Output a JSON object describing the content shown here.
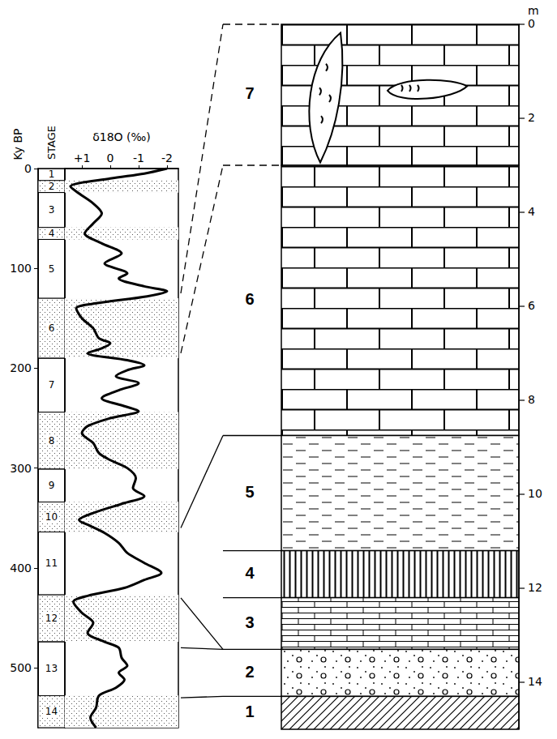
{
  "chart_data": {
    "type": "line",
    "xlabel": "δ18O (‰)",
    "ylabel": "Ky BP",
    "stage_label": "STAGE",
    "color": "#000000",
    "xlim": [
      1.6,
      -2.4
    ],
    "xticks": [
      {
        "value": 1,
        "label": "+1"
      },
      0,
      -1,
      -2
    ],
    "ylim": [
      0,
      560
    ],
    "yticks": [
      0,
      100,
      200,
      300,
      400,
      500
    ],
    "y": [
      0,
      5,
      10,
      18,
      25,
      35,
      45,
      55,
      65,
      75,
      85,
      95,
      105,
      110,
      118,
      123,
      128,
      135,
      140,
      150,
      160,
      170,
      175,
      180,
      185,
      192,
      197,
      202,
      208,
      215,
      222,
      230,
      238,
      243,
      250,
      258,
      265,
      275,
      285,
      292,
      300,
      310,
      320,
      328,
      335,
      345,
      352,
      358,
      365,
      375,
      385,
      395,
      405,
      412,
      420,
      428,
      434,
      445,
      455,
      465,
      474,
      480,
      490,
      498,
      505,
      512,
      520,
      528,
      540,
      550,
      560
    ],
    "x": [
      -2.0,
      -1.2,
      0.0,
      1.4,
      1.1,
      0.6,
      0.3,
      0.6,
      0.9,
      0.3,
      -0.4,
      0.2,
      -0.6,
      -0.3,
      -1.2,
      -2.0,
      -1.3,
      0.5,
      1.2,
      1.0,
      0.6,
      0.4,
      0.0,
      0.3,
      0.8,
      -0.6,
      -1.2,
      -0.6,
      -0.2,
      -1.0,
      -0.3,
      0.3,
      -0.5,
      -1.0,
      0.0,
      0.8,
      1.0,
      0.6,
      0.4,
      0.0,
      -0.6,
      -0.9,
      -0.8,
      -1.2,
      -0.5,
      0.6,
      1.1,
      0.7,
      0.2,
      -0.3,
      -0.6,
      -1.2,
      -1.8,
      -1.2,
      -0.5,
      0.8,
      1.3,
      1.0,
      0.6,
      0.8,
      0.2,
      -0.3,
      -0.4,
      -0.6,
      -0.3,
      -0.5,
      -0.2,
      0.4,
      0.5,
      0.7,
      0.5
    ],
    "stages": [
      {
        "label": "1",
        "from": 0,
        "to": 12
      },
      {
        "label": "2",
        "from": 12,
        "to": 24
      },
      {
        "label": "3",
        "from": 24,
        "to": 59
      },
      {
        "label": "4",
        "from": 59,
        "to": 71
      },
      {
        "label": "5",
        "from": 71,
        "to": 130
      },
      {
        "label": "6",
        "from": 130,
        "to": 190
      },
      {
        "label": "7",
        "from": 190,
        "to": 244
      },
      {
        "label": "8",
        "from": 244,
        "to": 301
      },
      {
        "label": "9",
        "from": 301,
        "to": 334
      },
      {
        "label": "10",
        "from": 334,
        "to": 364
      },
      {
        "label": "11",
        "from": 364,
        "to": 427
      },
      {
        "label": "12",
        "from": 427,
        "to": 474
      },
      {
        "label": "13",
        "from": 474,
        "to": 528
      },
      {
        "label": "14",
        "from": 528,
        "to": 568
      }
    ]
  },
  "column": {
    "depth_label": "m",
    "ylim": [
      0,
      15
    ],
    "yticks": [
      0,
      2,
      4,
      6,
      8,
      10,
      12,
      14
    ],
    "units": [
      {
        "label": "7",
        "top": 0,
        "base": 3.0
      },
      {
        "label": "6",
        "top": 3.0,
        "base": 8.75
      },
      {
        "label": "5",
        "top": 8.75,
        "base": 11.2
      },
      {
        "label": "4",
        "top": 11.2,
        "base": 12.2
      },
      {
        "label": "3",
        "top": 12.2,
        "base": 13.3
      },
      {
        "label": "2",
        "top": 13.3,
        "base": 14.3
      },
      {
        "label": "1",
        "top": 14.3,
        "base": 15
      }
    ]
  },
  "correlations": [
    {
      "age": 125,
      "depth": 0,
      "line_style": "dashed"
    },
    {
      "age": 185,
      "depth": 3.0,
      "line_style": "dashed"
    },
    {
      "age": 360,
      "depth": 8.75,
      "line_style": "solid"
    },
    {
      "age": 430,
      "depth": 13.3,
      "line_style": "solid"
    },
    {
      "age": 480,
      "depth": 13.3,
      "line_style": "solid"
    },
    {
      "age": 530,
      "depth": 14.3,
      "line_style": "solid"
    }
  ]
}
